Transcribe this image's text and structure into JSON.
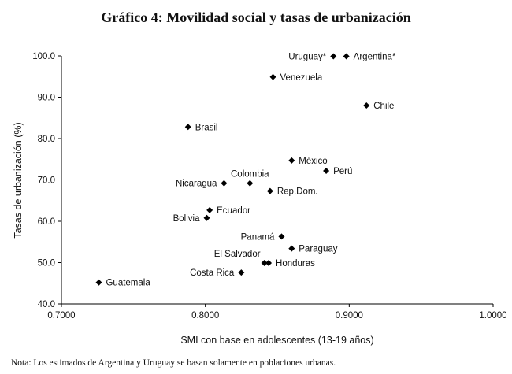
{
  "chart_data": {
    "type": "scatter",
    "title": "Gráfico 4:  Movilidad social y tasas de urbanización",
    "xlabel": "SMI con base en adolescentes (13-19 años)",
    "ylabel": "Tasas de urbanización (%)",
    "xlim": [
      0.7,
      1.0
    ],
    "ylim": [
      40.0,
      100.0
    ],
    "x_ticks": [
      "0.7000",
      "0.8000",
      "0.9000",
      "1.0000"
    ],
    "y_ticks": [
      "40.0",
      "50.0",
      "60.0",
      "70.0",
      "80.0",
      "90.0",
      "100.0"
    ],
    "grid": false,
    "marker": "diamond",
    "points": [
      {
        "label": "Uruguay*",
        "x": 0.889,
        "y": 99.9,
        "label_pos": "left"
      },
      {
        "label": "Argentina*",
        "x": 0.898,
        "y": 99.9,
        "label_pos": "right"
      },
      {
        "label": "Venezuela",
        "x": 0.847,
        "y": 94.9,
        "label_pos": "right"
      },
      {
        "label": "Chile",
        "x": 0.912,
        "y": 88.0,
        "label_pos": "right"
      },
      {
        "label": "Brasil",
        "x": 0.788,
        "y": 82.8,
        "label_pos": "right"
      },
      {
        "label": "México",
        "x": 0.86,
        "y": 74.7,
        "label_pos": "right"
      },
      {
        "label": "Perú",
        "x": 0.884,
        "y": 72.2,
        "label_pos": "right"
      },
      {
        "label": "Colombia",
        "x": 0.831,
        "y": 69.2,
        "label_pos": "above"
      },
      {
        "label": "Nicaragua",
        "x": 0.813,
        "y": 69.2,
        "label_pos": "left"
      },
      {
        "label": "Rep.Dom.",
        "x": 0.845,
        "y": 67.3,
        "label_pos": "right"
      },
      {
        "label": "Ecuador",
        "x": 0.803,
        "y": 62.7,
        "label_pos": "right"
      },
      {
        "label": "Bolivia",
        "x": 0.801,
        "y": 60.8,
        "label_pos": "left"
      },
      {
        "label": "Panamá",
        "x": 0.853,
        "y": 56.3,
        "label_pos": "left"
      },
      {
        "label": "Paraguay",
        "x": 0.86,
        "y": 53.4,
        "label_pos": "right"
      },
      {
        "label": "El Salvador",
        "x": 0.841,
        "y": 49.9,
        "label_pos": "above-left"
      },
      {
        "label": "Honduras",
        "x": 0.844,
        "y": 49.9,
        "label_pos": "right"
      },
      {
        "label": "Costa Rica",
        "x": 0.825,
        "y": 47.6,
        "label_pos": "left"
      },
      {
        "label": "Guatemala",
        "x": 0.726,
        "y": 45.2,
        "label_pos": "right"
      }
    ]
  },
  "note": "Nota: Los estimados de Argentina y Uruguay se basan solamente en poblaciones urbanas."
}
